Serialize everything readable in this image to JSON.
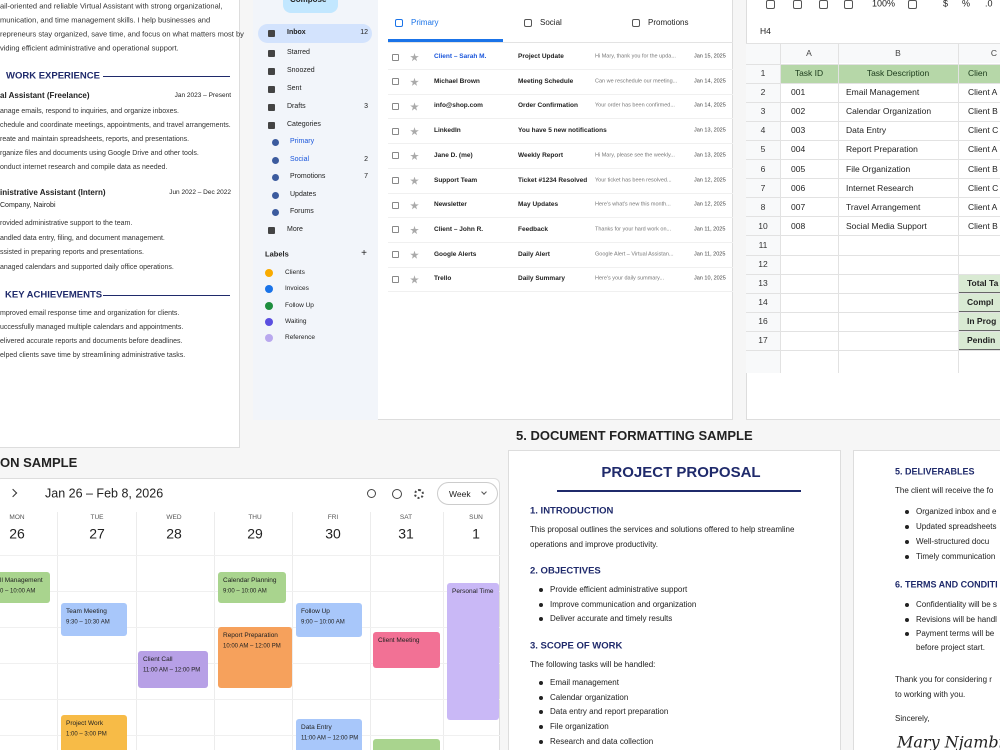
{
  "resume": {
    "summary": [
      "ail-oriented and reliable Virtual Assistant with strong organizational,",
      "munication, and time management skills. I help businesses and",
      "repreneurs stay organized, save time, and focus on what matters most by",
      "viding efficient administrative and operational support."
    ],
    "work_heading": "WORK EXPERIENCE",
    "jobs": [
      {
        "title": "al Assistant (Freelance)",
        "dates": "Jan 2023 – Present",
        "bullets": [
          "anage emails, respond to inquiries, and organize inboxes.",
          "chedule and coordinate meetings, appointments, and travel arrangements.",
          "reate and maintain spreadsheets, reports, and presentations.",
          "rganize files and documents using Google Drive and other tools.",
          "onduct internet research and compile data as needed."
        ]
      },
      {
        "title": "inistrative Assistant (Intern)",
        "dates": "Jun 2022 – Dec 2022",
        "company": "Company, Nairobi",
        "bullets": [
          "rovided administrative support to the team.",
          "andled data entry, filing, and document management.",
          "ssisted in preparing reports and presentations.",
          "anaged calendars and supported daily office operations."
        ]
      }
    ],
    "achievements_heading": "KEY ACHIEVEMENTS",
    "achievements": [
      "mproved email response time and organization for clients.",
      "uccessfully managed multiple calendars and appointments.",
      "elivered accurate reports and documents before deadlines.",
      "elped clients save time by streamlining administrative tasks."
    ]
  },
  "email": {
    "compose": "Compose",
    "nav": [
      {
        "label": "Inbox",
        "count": 12
      },
      {
        "label": "Starred"
      },
      {
        "label": "Snoozed"
      },
      {
        "label": "Sent"
      },
      {
        "label": "Drafts",
        "count": 3
      },
      {
        "label": "Categories"
      },
      {
        "label": "Primary"
      },
      {
        "label": "Social",
        "count": 2
      },
      {
        "label": "Promotions",
        "count": 7
      },
      {
        "label": "Updates"
      },
      {
        "label": "Forums"
      },
      {
        "label": "More"
      }
    ],
    "labels_heading": "Labels",
    "add": "+",
    "labels": [
      {
        "name": "Clients",
        "color": "#f9ab00"
      },
      {
        "name": "Invoices",
        "color": "#1a73e8"
      },
      {
        "name": "Follow Up",
        "color": "#1e8e3e"
      },
      {
        "name": "Waiting",
        "color": "#5b4fe0"
      },
      {
        "name": "Reference",
        "color": "#b9a8ee"
      }
    ],
    "tabs": [
      "Primary",
      "Social",
      "Promotions"
    ],
    "messages": [
      {
        "sender": "Client – Sarah M.",
        "subject": "Project Update",
        "snippet": "Hi Mary, thank you for the upda...",
        "date": "Jan 15, 2025"
      },
      {
        "sender": "Michael Brown",
        "subject": "Meeting Schedule",
        "snippet": "Can we reschedule our meeting...",
        "date": "Jan 14, 2025"
      },
      {
        "sender": "info@shop.com",
        "subject": "Order Confirmation",
        "snippet": "Your order has been confirmed...",
        "date": "Jan 14, 2025"
      },
      {
        "sender": "LinkedIn",
        "subject": "You have 5 new notifications",
        "date": "Jan 13, 2025"
      },
      {
        "sender": "Jane D. (me)",
        "subject": "Weekly Report",
        "snippet": "Hi Mary, please see the weekly...",
        "date": "Jan 13, 2025"
      },
      {
        "sender": "Support Team",
        "subject": "Ticket #1234 Resolved",
        "snippet": "Your ticket has been resolved...",
        "date": "Jan 12, 2025"
      },
      {
        "sender": "Newsletter",
        "subject": "May Updates",
        "snippet": "Here's what's new this month...",
        "date": "Jan 12, 2025"
      },
      {
        "sender": "Client – John R.",
        "subject": "Feedback",
        "snippet": "Thanks for your hard work on...",
        "date": "Jan 11, 2025"
      },
      {
        "sender": "Google Alerts",
        "subject": "Daily Alert",
        "snippet": "Google Alert – Virtual Assistan...",
        "date": "Jan 11, 2025"
      },
      {
        "sender": "Trello",
        "subject": "Daily Summary",
        "snippet": "Here's your daily summary...",
        "date": "Jan 10, 2025"
      }
    ]
  },
  "spreadsheet": {
    "toolbar": {
      "zoom": "100%",
      "currency": "$",
      "percent": "%",
      "decimal": ".0"
    },
    "cell_ref": "H4",
    "columns": [
      "A",
      "B",
      "C"
    ],
    "row_labels": [
      1,
      2,
      3,
      4,
      5,
      6,
      7,
      8,
      10,
      11,
      12,
      13,
      14,
      16,
      17
    ],
    "header": [
      "Task ID",
      "Task Description",
      "Clien"
    ],
    "tasks": [
      [
        "001",
        "Email Management",
        "Client A"
      ],
      [
        "002",
        "Calendar Organization",
        "Client B"
      ],
      [
        "003",
        "Data Entry",
        "Client C"
      ],
      [
        "004",
        "Report Preparation",
        "Client A"
      ],
      [
        "005",
        "File Organization",
        "Client B"
      ],
      [
        "006",
        "Internet Research",
        "Client C"
      ],
      [
        "007",
        "Travel Arrangement",
        "Client A"
      ],
      [
        "008",
        "Social Media Support",
        "Client B"
      ]
    ],
    "summary": [
      "Total Ta",
      "Compl",
      "In Prog",
      "Pendin"
    ]
  },
  "calendar": {
    "heading": "ON SAMPLE",
    "range": "Jan 26 – Feb 8, 2026",
    "view": "Week",
    "days": [
      {
        "name": "MON",
        "date": 26
      },
      {
        "name": "TUE",
        "date": 27
      },
      {
        "name": "WED",
        "date": 28
      },
      {
        "name": "THU",
        "date": 29
      },
      {
        "name": "FRI",
        "date": 30
      },
      {
        "name": "SAT",
        "date": 31
      },
      {
        "name": "SUN",
        "date": 1
      }
    ],
    "events": [
      {
        "title": "ll Management",
        "time": "0 – 10:00 AM",
        "color": "#a9d48e"
      },
      {
        "title": "Calendar Planning",
        "time": "9:00 – 10:00 AM",
        "color": "#a9d48e"
      },
      {
        "title": "Team Meeting",
        "time": "9:30 – 10:30 AM",
        "color": "#a8c7fa"
      },
      {
        "title": "Follow Up",
        "time": "9:00 – 10:00 AM",
        "color": "#a8c7fa"
      },
      {
        "title": "Personal Time",
        "color": "#c9b8f6"
      },
      {
        "title": "Report Preparation",
        "time": "10:00 AM – 12:00 PM",
        "color": "#f6a15c"
      },
      {
        "title": "Client Meeting",
        "color": "#f27195"
      },
      {
        "title": "Client Call",
        "time": "11:00 AM – 12:00 PM",
        "color": "#b7a0e6"
      },
      {
        "title": "Project Work",
        "time": "1:00 – 3:00 PM",
        "color": "#f7bb47"
      },
      {
        "title": "Data Entry",
        "time": "11:00 AM – 12:00 PM",
        "color": "#a8c7fa"
      }
    ]
  },
  "document": {
    "heading": "5. DOCUMENT FORMATTING SAMPLE",
    "page1": {
      "title": "PROJECT PROPOSAL",
      "sections": [
        {
          "heading": "1. INTRODUCTION",
          "text": [
            "This proposal outlines the services and solutions offered to help streamline",
            "operations and improve productivity."
          ]
        },
        {
          "heading": "2. OBJECTIVES",
          "bullets": [
            "Provide efficient administrative support",
            "Improve communication and organization",
            "Deliver accurate and timely results"
          ]
        },
        {
          "heading": "3. SCOPE OF WORK",
          "text": [
            "The following tasks will be handled:"
          ],
          "bullets": [
            "Email management",
            "Calendar organization",
            "Data entry and report preparation",
            "File organization",
            "Research and data collection"
          ]
        }
      ]
    },
    "page2": {
      "deliverables_heading": "5. DELIVERABLES",
      "deliverables_text": "The client will receive the fo",
      "deliverables": [
        "Organized inbox and e",
        "Updated spreadsheets",
        "Well-structured docu",
        "Timely communication"
      ],
      "terms_heading": "6. TERMS AND CONDITI",
      "terms": [
        "Confidentiality will be s",
        "Revisions will be handl",
        "Payment terms will be"
      ],
      "terms_continuation": "before project start.",
      "closing": [
        "Thank you for considering r",
        "to working with you."
      ],
      "signoff": "Sincerely,",
      "signature": "Mary Njambi D"
    }
  }
}
